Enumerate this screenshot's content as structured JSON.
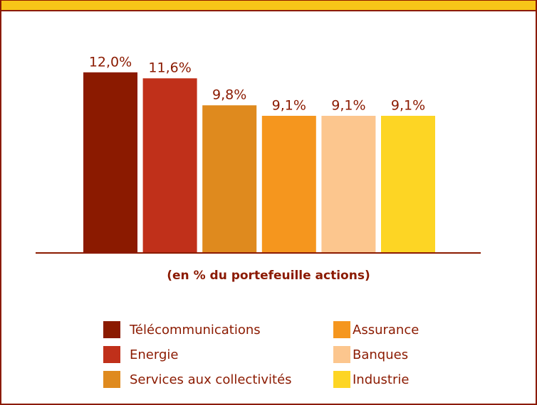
{
  "chart_data": {
    "type": "bar",
    "categories": [
      "Télécommunications",
      "Energie",
      "Services aux collectivités",
      "Assurance",
      "Banques",
      "Industrie"
    ],
    "values": [
      12.0,
      11.6,
      9.8,
      9.1,
      9.1,
      9.1
    ],
    "value_labels": [
      "12,0%",
      "11,6%",
      "9,8%",
      "9,1%",
      "9,1%",
      "9,1%"
    ],
    "colors": [
      "#8b1a00",
      "#c0301a",
      "#df8a1e",
      "#f5961e",
      "#fcc68e",
      "#fdd524"
    ],
    "x_label": "(en % du portefeuille actions)"
  }
}
